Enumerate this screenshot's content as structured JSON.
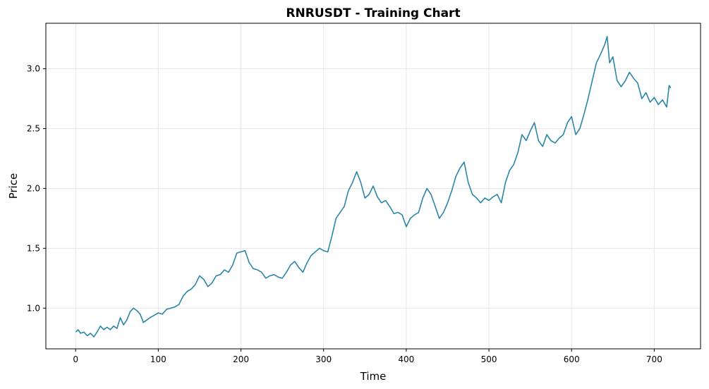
{
  "chart_data": {
    "type": "line",
    "title": "RNRUSDT - Training Chart",
    "xlabel": "Time",
    "ylabel": "Price",
    "xlim": [
      -36,
      756
    ],
    "ylim": [
      0.66,
      3.38
    ],
    "xticks": [
      0,
      100,
      200,
      300,
      400,
      500,
      600,
      700
    ],
    "yticks": [
      1.0,
      1.5,
      2.0,
      2.5,
      3.0
    ],
    "xtick_labels": [
      "0",
      "100",
      "200",
      "300",
      "400",
      "500",
      "600",
      "700"
    ],
    "ytick_labels": [
      "1.0",
      "1.5",
      "2.0",
      "2.5",
      "3.0"
    ],
    "grid": true,
    "colors": {
      "line": "#2a86a8",
      "grid": "#e6e6e6",
      "axis": "#000000"
    },
    "series": [
      {
        "x": [
          0,
          3,
          6,
          10,
          14,
          18,
          22,
          26,
          30,
          34,
          38,
          42,
          46,
          50,
          54,
          58,
          62,
          66,
          70,
          74,
          78,
          82,
          86,
          90,
          95,
          100,
          105,
          110,
          115,
          120,
          125,
          130,
          135,
          140,
          145,
          150,
          155,
          160,
          165,
          170,
          175,
          180,
          185,
          190,
          195,
          200,
          205,
          210,
          215,
          220,
          225,
          230,
          235,
          240,
          245,
          250,
          255,
          260,
          265,
          270,
          275,
          280,
          285,
          290,
          295,
          300,
          305,
          310,
          315,
          320,
          325,
          330,
          335,
          340,
          345,
          350,
          355,
          360,
          365,
          370,
          375,
          380,
          385,
          390,
          395,
          400,
          405,
          410,
          415,
          420,
          425,
          430,
          435,
          440,
          445,
          450,
          455,
          460,
          465,
          470,
          475,
          480,
          485,
          490,
          495,
          500,
          505,
          510,
          515,
          520,
          525,
          530,
          535,
          540,
          545,
          550,
          555,
          560,
          565,
          570,
          575,
          580,
          585,
          590,
          595,
          600,
          605,
          610,
          615,
          620,
          625,
          630,
          635,
          640,
          643,
          646,
          650,
          655,
          660,
          665,
          670,
          675,
          680,
          685,
          690,
          695,
          700,
          705,
          710,
          715,
          718,
          720
        ],
        "values": [
          0.8,
          0.82,
          0.79,
          0.8,
          0.77,
          0.79,
          0.76,
          0.8,
          0.85,
          0.82,
          0.84,
          0.82,
          0.85,
          0.83,
          0.92,
          0.86,
          0.9,
          0.97,
          1.0,
          0.98,
          0.95,
          0.88,
          0.9,
          0.92,
          0.94,
          0.96,
          0.95,
          0.99,
          1.0,
          1.01,
          1.03,
          1.1,
          1.14,
          1.16,
          1.2,
          1.27,
          1.24,
          1.18,
          1.21,
          1.27,
          1.28,
          1.32,
          1.3,
          1.36,
          1.46,
          1.47,
          1.48,
          1.38,
          1.33,
          1.32,
          1.3,
          1.25,
          1.27,
          1.28,
          1.26,
          1.25,
          1.3,
          1.36,
          1.39,
          1.34,
          1.3,
          1.38,
          1.44,
          1.47,
          1.5,
          1.48,
          1.47,
          1.6,
          1.75,
          1.8,
          1.85,
          1.98,
          2.05,
          2.14,
          2.05,
          1.92,
          1.95,
          2.02,
          1.93,
          1.88,
          1.9,
          1.85,
          1.79,
          1.8,
          1.78,
          1.68,
          1.75,
          1.78,
          1.8,
          1.92,
          2.0,
          1.95,
          1.85,
          1.75,
          1.8,
          1.88,
          1.98,
          2.1,
          2.17,
          2.22,
          2.05,
          1.95,
          1.92,
          1.88,
          1.92,
          1.9,
          1.93,
          1.95,
          1.88,
          2.05,
          2.15,
          2.2,
          2.3,
          2.45,
          2.4,
          2.48,
          2.55,
          2.4,
          2.35,
          2.45,
          2.4,
          2.38,
          2.42,
          2.45,
          2.55,
          2.6,
          2.45,
          2.5,
          2.62,
          2.75,
          2.9,
          3.05,
          3.12,
          3.2,
          3.27,
          3.05,
          3.1,
          2.9,
          2.85,
          2.9,
          2.97,
          2.92,
          2.88,
          2.75,
          2.8,
          2.72,
          2.76,
          2.7,
          2.74,
          2.68,
          2.86,
          2.84
        ]
      }
    ]
  }
}
